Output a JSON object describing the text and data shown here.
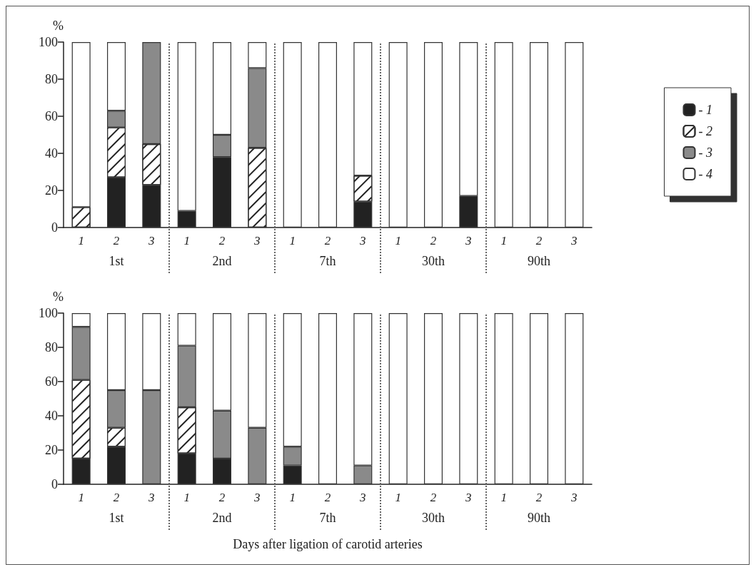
{
  "chart_data": [
    {
      "type": "bar",
      "stacked": true,
      "ylabel": "%",
      "ylim": [
        0,
        100
      ],
      "yticks": [
        0,
        20,
        40,
        60,
        80,
        100
      ],
      "grid": false,
      "legend": "right",
      "categories": [
        "1",
        "2",
        "3",
        "1",
        "2",
        "3",
        "1",
        "2",
        "3",
        "1",
        "2",
        "3",
        "1",
        "2",
        "3"
      ],
      "annotations": [
        "1st",
        "2nd",
        "7th",
        "30th",
        "90th"
      ],
      "series": [
        {
          "name": "- 1",
          "color": "#222222",
          "values": [
            0,
            27,
            23,
            9,
            38,
            0,
            0,
            0,
            14,
            0,
            0,
            17,
            0,
            0,
            0
          ]
        },
        {
          "name": "- 2",
          "color": "#ffffff",
          "values": [
            11,
            27,
            22,
            0,
            0,
            43,
            0,
            0,
            14,
            0,
            0,
            0,
            0,
            0,
            0
          ]
        },
        {
          "name": "- 3",
          "color": "#8a8a8a",
          "values": [
            0,
            9,
            55,
            0,
            12,
            43,
            0,
            0,
            0,
            0,
            0,
            0,
            0,
            0,
            0
          ]
        },
        {
          "name": "- 4",
          "color": "#ffffff",
          "values": [
            89,
            37,
            0,
            91,
            50,
            14,
            100,
            100,
            72,
            100,
            100,
            83,
            100,
            100,
            100
          ]
        }
      ]
    },
    {
      "type": "bar",
      "stacked": true,
      "ylabel": "%",
      "xlabel": "Days after ligation of carotid arteries",
      "ylim": [
        0,
        100
      ],
      "yticks": [
        0,
        20,
        40,
        60,
        80,
        100
      ],
      "grid": false,
      "categories": [
        "1",
        "2",
        "3",
        "1",
        "2",
        "3",
        "1",
        "2",
        "3",
        "1",
        "2",
        "3",
        "1",
        "2",
        "3"
      ],
      "annotations": [
        "1st",
        "2nd",
        "7th",
        "30th",
        "90th"
      ],
      "series": [
        {
          "color": "#222222",
          "values": [
            15,
            22,
            0,
            18,
            15,
            0,
            11,
            0,
            0,
            0,
            0,
            0,
            0,
            0,
            0
          ]
        },
        {
          "color": "#ffffff",
          "values": [
            46,
            11,
            0,
            27,
            0,
            0,
            0,
            0,
            0,
            0,
            0,
            0,
            0,
            0,
            0
          ]
        },
        {
          "color": "#8a8a8a",
          "values": [
            31,
            22,
            55,
            36,
            28,
            33,
            11,
            0,
            11,
            0,
            0,
            0,
            0,
            0,
            0
          ]
        },
        {
          "color": "#ffffff",
          "values": [
            8,
            45,
            45,
            19,
            57,
            67,
            78,
            100,
            89,
            100,
            100,
            100,
            100,
            100,
            100
          ]
        }
      ]
    }
  ]
}
